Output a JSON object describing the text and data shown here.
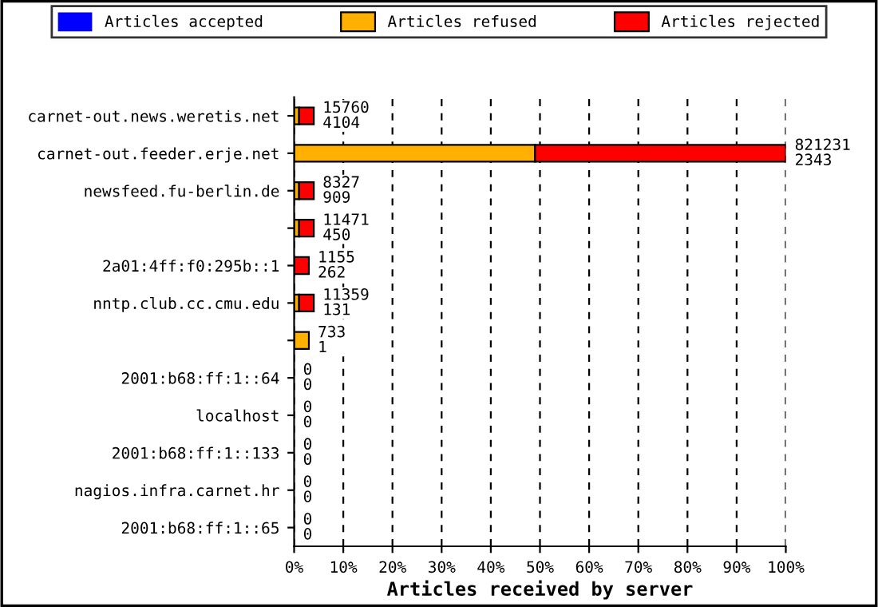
{
  "chart_data": {
    "type": "bar",
    "orientation": "horizontal",
    "stacked": true,
    "xlabel": "Articles received by server",
    "categories": [
      "carnet-out.news.weretis.net",
      "carnet-out.feeder.erje.net",
      "newsfeed.fu-berlin.de",
      null,
      "2a01:4ff:f0:295b::1",
      "nntp.club.cc.cmu.edu",
      null,
      "2001:b68:ff:1::64",
      "localhost",
      "2001:b68:ff:1::133",
      "nagios.infra.carnet.hr",
      "2001:b68:ff:1::65"
    ],
    "series": [
      {
        "name": "Articles accepted",
        "color": "#0000ff",
        "values": [
          0,
          0,
          0,
          0,
          0,
          0,
          0,
          0,
          0,
          0,
          0,
          0
        ]
      },
      {
        "name": "Articles refused",
        "color": "#ffb000",
        "values": [
          1,
          49,
          1,
          1,
          0,
          1,
          3,
          0,
          0,
          0,
          0,
          0
        ]
      },
      {
        "name": "Articles rejected",
        "color": "#ff0000",
        "values": [
          3,
          51,
          3,
          3,
          3,
          3,
          0,
          0,
          0,
          0,
          0,
          0
        ]
      }
    ],
    "annotations": [
      {
        "text": "15760\n4104",
        "x": 4,
        "y": "carnet-out.news.weretis.net"
      },
      {
        "text": "821231\n2343",
        "x": 100,
        "y": "carnet-out.feeder.erje.net"
      },
      {
        "text": "8327\n909",
        "x": 4,
        "y": "newsfeed.fu-berlin.de"
      },
      {
        "text": "11471\n450",
        "x": 4
      },
      {
        "text": "1155\n262",
        "x": 3,
        "y": "2a01:4ff:f0:295b::1"
      },
      {
        "text": "11359\n131",
        "x": 4,
        "y": "nntp.club.cc.cmu.edu"
      },
      {
        "text": "733\n1",
        "x": 3
      },
      {
        "text": "0\n0",
        "x": 0,
        "y": "2001:b68:ff:1::64"
      },
      {
        "text": "0\n0",
        "x": 0,
        "y": "localhost"
      },
      {
        "text": "0\n0",
        "x": 0,
        "y": "2001:b68:ff:1::133"
      },
      {
        "text": "0\n0",
        "x": 0,
        "y": "nagios.infra.carnet.hr"
      },
      {
        "text": "0\n0",
        "x": 0,
        "y": "2001:b68:ff:1::65"
      }
    ],
    "xlim": [
      0,
      100
    ],
    "xticks": [
      {
        "value": 0,
        "label": "0%"
      },
      {
        "value": 10,
        "label": "10%"
      },
      {
        "value": 20,
        "label": "20%"
      },
      {
        "value": 30,
        "label": "30%"
      },
      {
        "value": 40,
        "label": "40%"
      },
      {
        "value": 50,
        "label": "50%"
      },
      {
        "value": 60,
        "label": "60%"
      },
      {
        "value": 70,
        "label": "70%"
      },
      {
        "value": 80,
        "label": "80%"
      },
      {
        "value": 90,
        "label": "90%"
      },
      {
        "value": 100,
        "label": "100%"
      }
    ],
    "grid": "x",
    "legend": "top"
  }
}
